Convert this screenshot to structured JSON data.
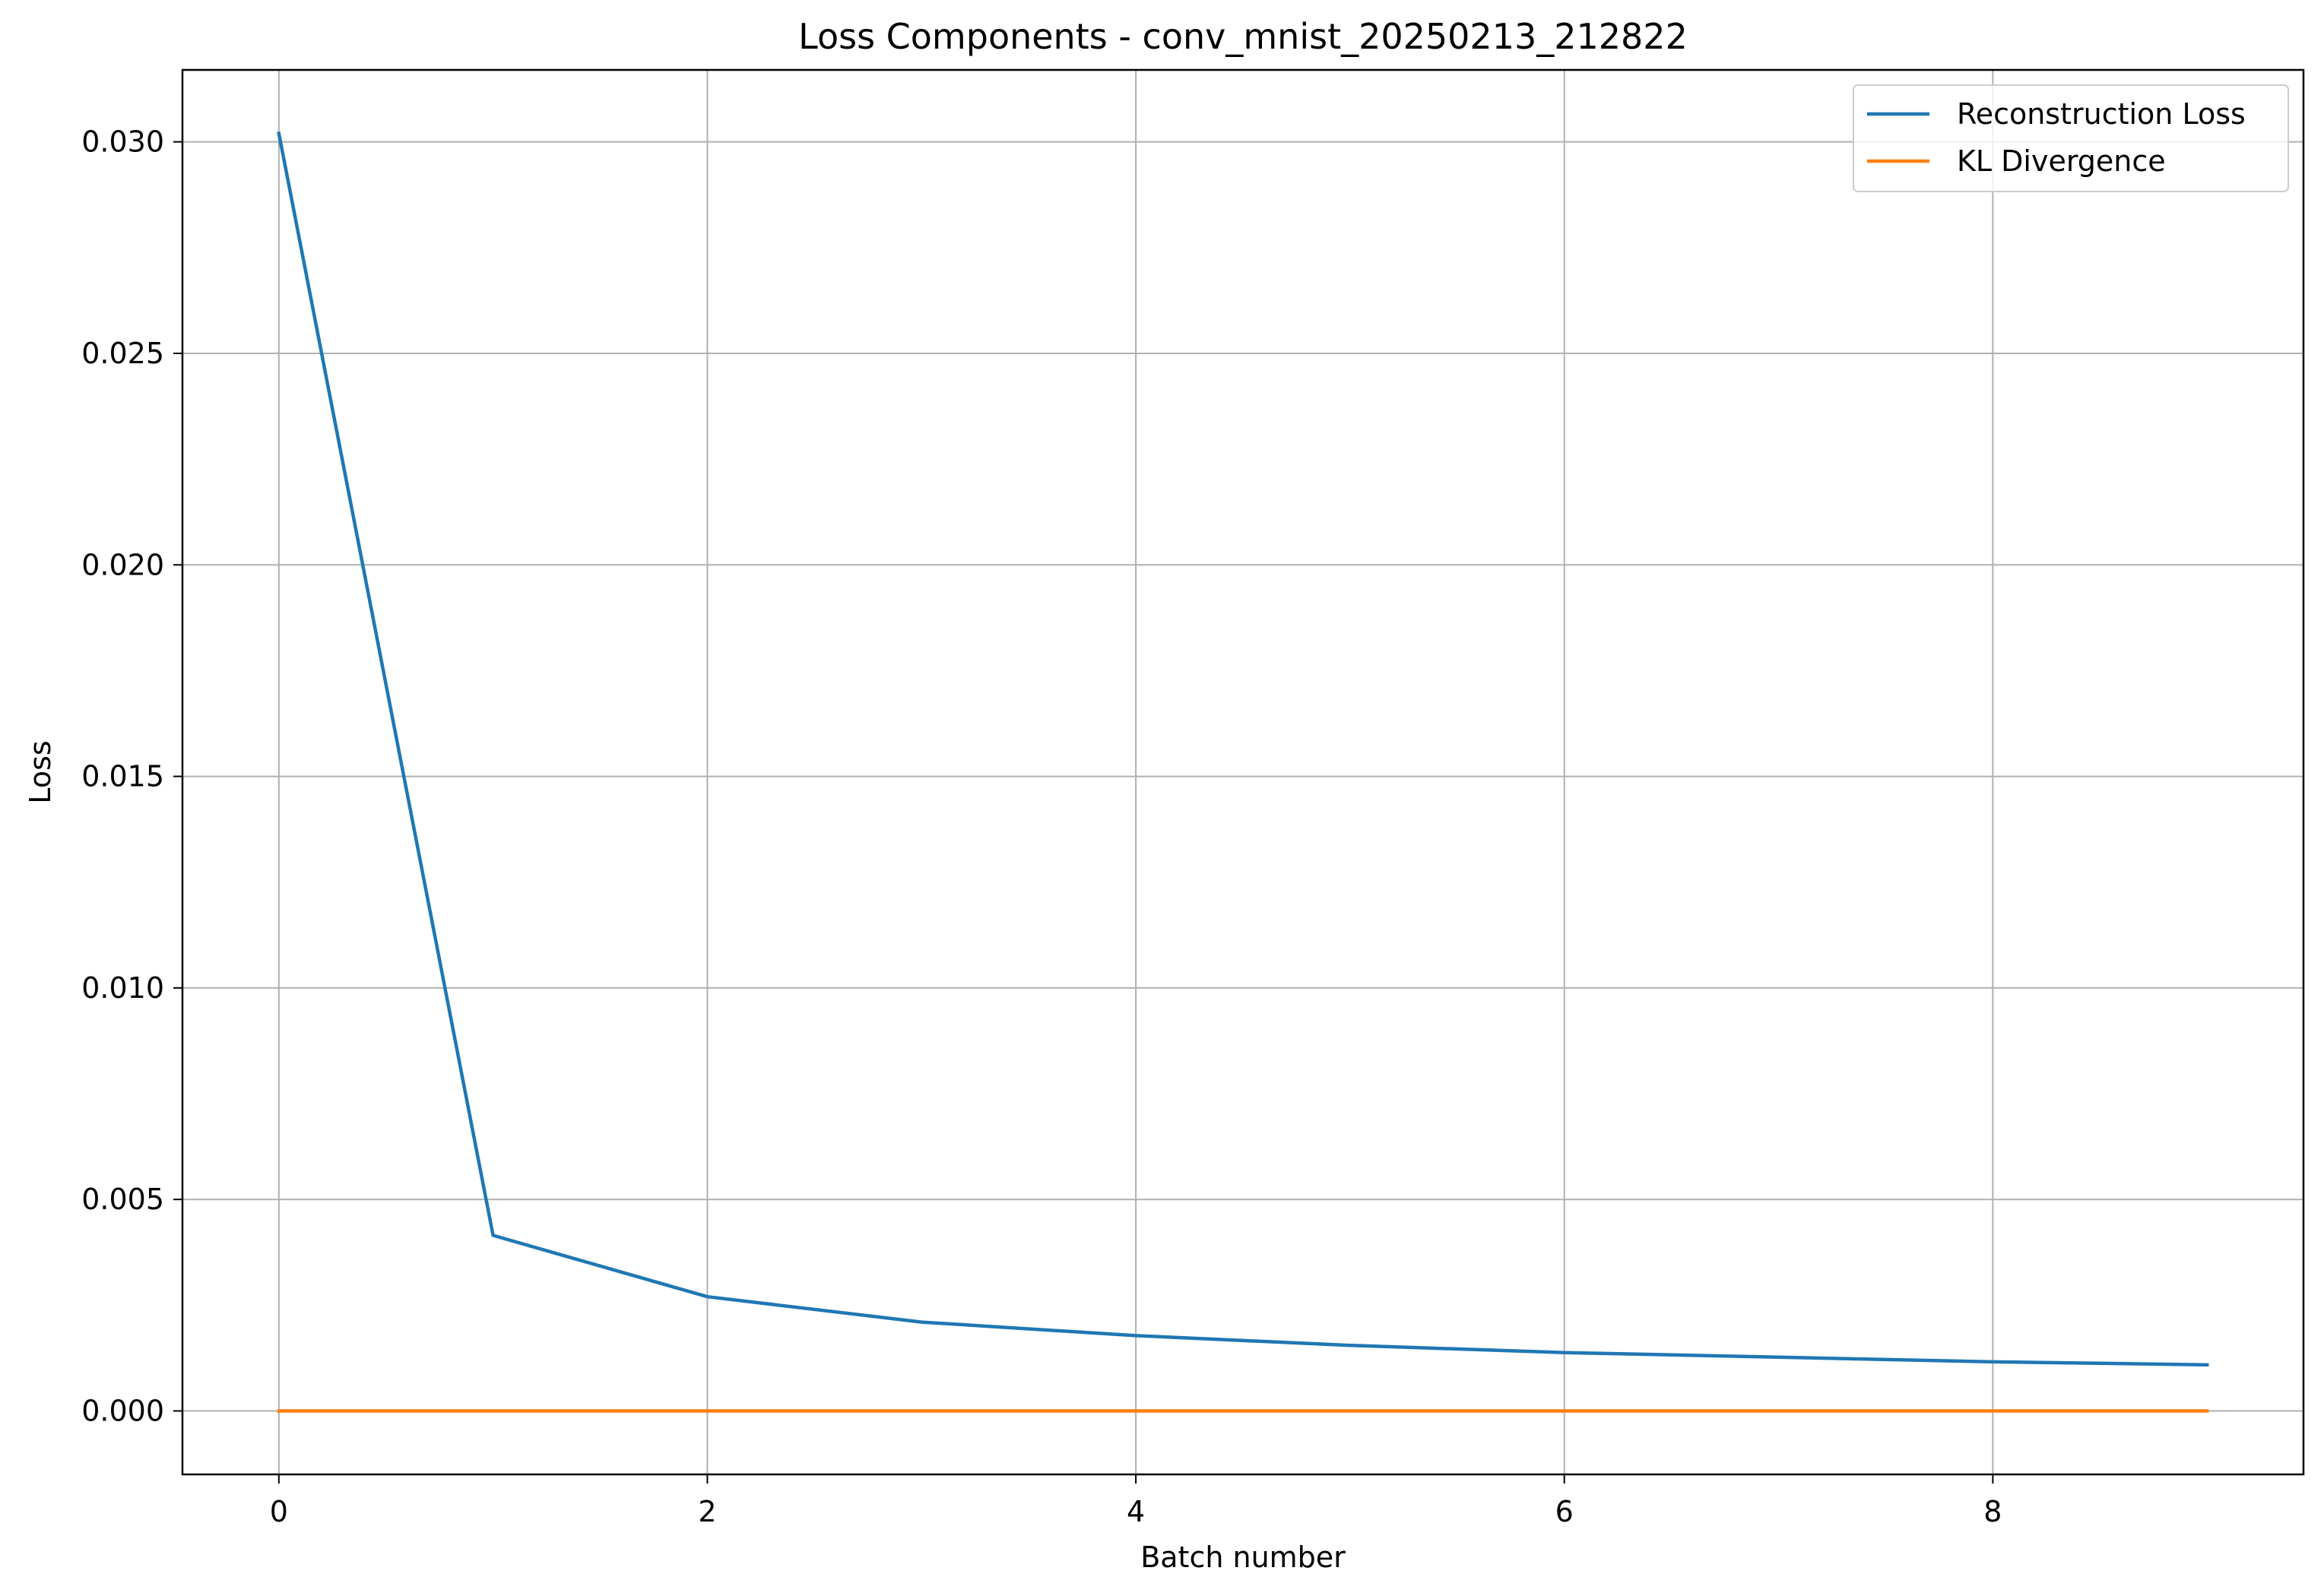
{
  "chart_data": {
    "type": "line",
    "title": "Loss Components - conv_mnist_20250213_212822",
    "xlabel": "Batch number",
    "ylabel": "Loss",
    "xlim": [
      -0.45,
      9.45
    ],
    "ylim": [
      -0.0015,
      0.0317
    ],
    "xticks": [
      0,
      2,
      4,
      6,
      8
    ],
    "xtick_labels": [
      "0",
      "2",
      "4",
      "6",
      "8"
    ],
    "yticks": [
      0.0,
      0.005,
      0.01,
      0.015,
      0.02,
      0.025,
      0.03
    ],
    "ytick_labels": [
      "0.000",
      "0.005",
      "0.010",
      "0.015",
      "0.020",
      "0.025",
      "0.030"
    ],
    "grid": true,
    "legend_position": "top-right",
    "x": [
      0,
      1,
      2,
      3,
      4,
      5,
      6,
      7,
      8,
      9
    ],
    "series": [
      {
        "name": "Reconstruction Loss",
        "color": "#1f77b4",
        "values": [
          0.0302,
          0.00415,
          0.0027,
          0.0021,
          0.00178,
          0.00155,
          0.00138,
          0.00127,
          0.00116,
          0.00109
        ]
      },
      {
        "name": "KL Divergence",
        "color": "#ff7f0e",
        "values": [
          0.0,
          0.0,
          0.0,
          0.0,
          0.0,
          0.0,
          0.0,
          0.0,
          0.0,
          0.0
        ]
      }
    ]
  }
}
